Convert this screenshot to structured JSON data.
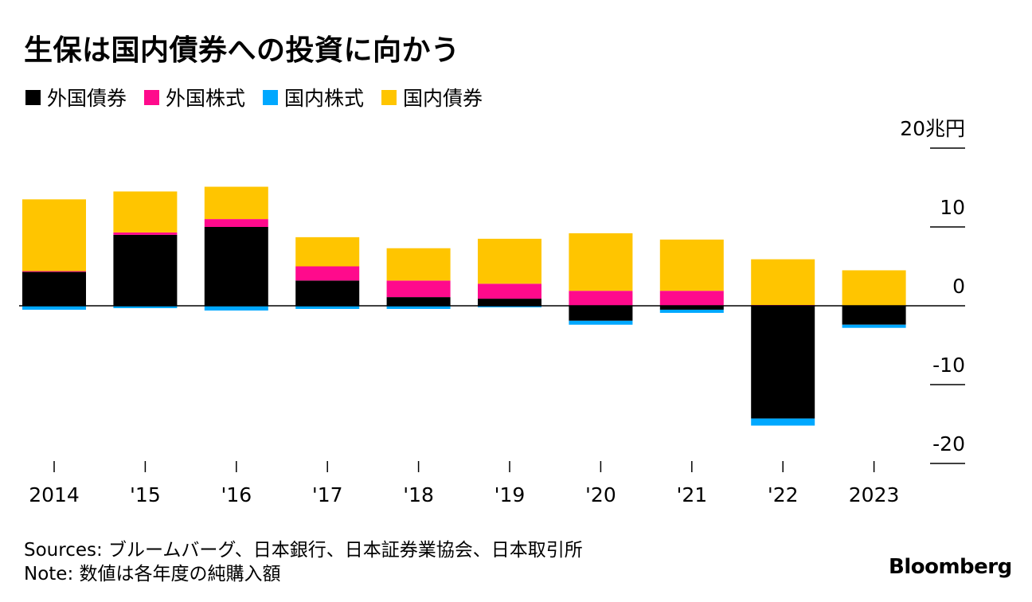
{
  "title": "生保は国内債券への投資に向かう",
  "footer": {
    "sources": "Sources: ブルームバーグ、日本銀行、日本証券業協会、日本取引所",
    "note": "Note: 数値は各年度の純購入額"
  },
  "brand": "Bloomberg",
  "colors": {
    "foreign_bonds": "#000000",
    "foreign_stocks": "#ff0a8c",
    "domestic_stocks": "#00a8ff",
    "domestic_bonds": "#ffc500"
  },
  "chart_data": {
    "type": "bar",
    "stacked": true,
    "unit_label": "20兆円",
    "categories": [
      "2014",
      "'15",
      "'16",
      "'17",
      "'18",
      "'19",
      "'20",
      "'21",
      "'22",
      "2023"
    ],
    "series": [
      {
        "name": "外国債券",
        "color": "#000000",
        "values": [
          4.3,
          9.0,
          10.0,
          3.2,
          1.1,
          0.9,
          -1.9,
          -0.5,
          -14.3,
          -2.4
        ]
      },
      {
        "name": "外国株式",
        "color": "#ff0a8c",
        "values": [
          0.1,
          0.3,
          1.0,
          1.8,
          2.1,
          1.9,
          1.9,
          1.9,
          0.1,
          0.0
        ]
      },
      {
        "name": "国内株式",
        "color": "#00a8ff",
        "values": [
          -0.5,
          -0.3,
          -0.6,
          -0.4,
          -0.4,
          -0.2,
          -0.5,
          -0.4,
          -0.9,
          -0.4
        ]
      },
      {
        "name": "国内債券",
        "color": "#ffc500",
        "values": [
          9.1,
          5.2,
          4.1,
          3.7,
          4.1,
          5.7,
          7.3,
          6.5,
          5.8,
          4.5
        ]
      }
    ],
    "y_ticks": [
      20,
      10,
      0,
      -10,
      -20
    ],
    "y_tick_labels": [
      "20兆円",
      "10",
      "0",
      "-10",
      "-20"
    ],
    "ylim": [
      -20,
      20
    ],
    "xlabel": "",
    "ylabel": "",
    "grid": false,
    "legend_position": "top-left"
  }
}
